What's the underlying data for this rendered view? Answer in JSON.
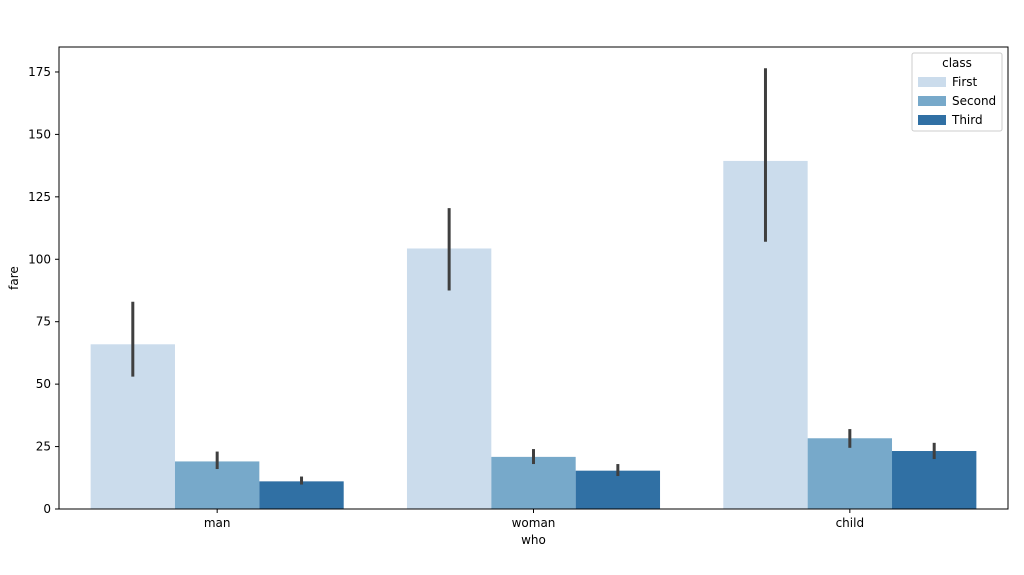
{
  "chart_data": {
    "type": "bar",
    "xlabel": "who",
    "ylabel": "fare",
    "categories": [
      "man",
      "woman",
      "child"
    ],
    "ylim": [
      0,
      185
    ],
    "yticks": [
      0,
      25,
      50,
      75,
      100,
      125,
      150,
      175
    ],
    "grid": false,
    "legend": {
      "title": "class",
      "placement": "top-right"
    },
    "series": [
      {
        "name": "First",
        "color": "#cbdcec",
        "values": [
          65.95,
          104.32,
          139.38
        ],
        "err_low": [
          53.0,
          87.5,
          107.0
        ],
        "err_high": [
          83.0,
          120.5,
          176.5
        ]
      },
      {
        "name": "Second",
        "color": "#77a9ca",
        "values": [
          19.05,
          20.87,
          28.32
        ],
        "err_low": [
          16.0,
          18.0,
          24.5
        ],
        "err_high": [
          23.0,
          24.0,
          32.0
        ]
      },
      {
        "name": "Third",
        "color": "#3070a4",
        "values": [
          11.07,
          15.35,
          23.22
        ],
        "err_low": [
          9.8,
          13.2,
          20.0
        ],
        "err_high": [
          13.0,
          18.0,
          26.5
        ]
      }
    ],
    "errorbar_color": "#3f3f3f"
  }
}
